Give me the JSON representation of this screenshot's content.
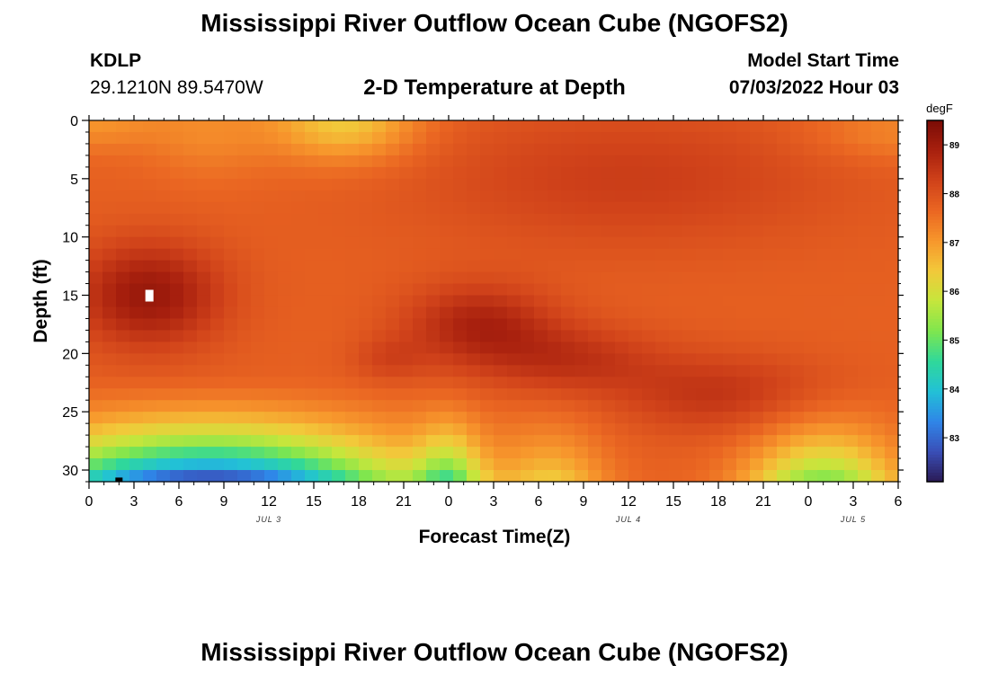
{
  "header": {
    "title": "Mississippi River Outflow Ocean Cube (NGOFS2)",
    "station": "KDLP",
    "coords": "29.1210N  89.5470W",
    "subtitle": "2-D Temperature at Depth",
    "model_label": "Model Start Time",
    "model_time": "07/03/2022 Hour 03"
  },
  "footer": {
    "title": "Mississippi River Outflow Ocean Cube (NGOFS2)"
  },
  "chart_data": {
    "type": "heatmap",
    "xlabel": "Forecast Time(Z)",
    "ylabel": "Depth (ft)",
    "x_range_hours": [
      0,
      54
    ],
    "x_ticks": [
      "0",
      "3",
      "6",
      "9",
      "12",
      "15",
      "18",
      "21",
      "0",
      "3",
      "6",
      "9",
      "12",
      "15",
      "18",
      "21",
      "0",
      "3",
      "6"
    ],
    "date_labels": [
      {
        "label": "JUL 3",
        "hour": 12
      },
      {
        "label": "JUL 4",
        "hour": 36
      },
      {
        "label": "JUL 5",
        "hour": 51
      }
    ],
    "y_range_ft": [
      0,
      31
    ],
    "y_ticks": [
      0,
      5,
      10,
      15,
      20,
      25,
      30
    ],
    "y_inverted": true,
    "colorbar": {
      "unit": "degF",
      "min": 82.1,
      "max": 89.5,
      "ticks": [
        83,
        84,
        85,
        86,
        87,
        88,
        89
      ]
    },
    "colormap": [
      "#2a1a55",
      "#3a4fb8",
      "#2f86e8",
      "#22c1d6",
      "#30d89a",
      "#7fe64e",
      "#c6e63c",
      "#f2c93a",
      "#f7962c",
      "#ea6622",
      "#d0421a",
      "#a8200e",
      "#7a0c06"
    ],
    "marker_white": {
      "hour": 4,
      "depth_ft": 15
    },
    "marker_black": {
      "hour": 2,
      "depth_ft": 30.8
    }
  }
}
